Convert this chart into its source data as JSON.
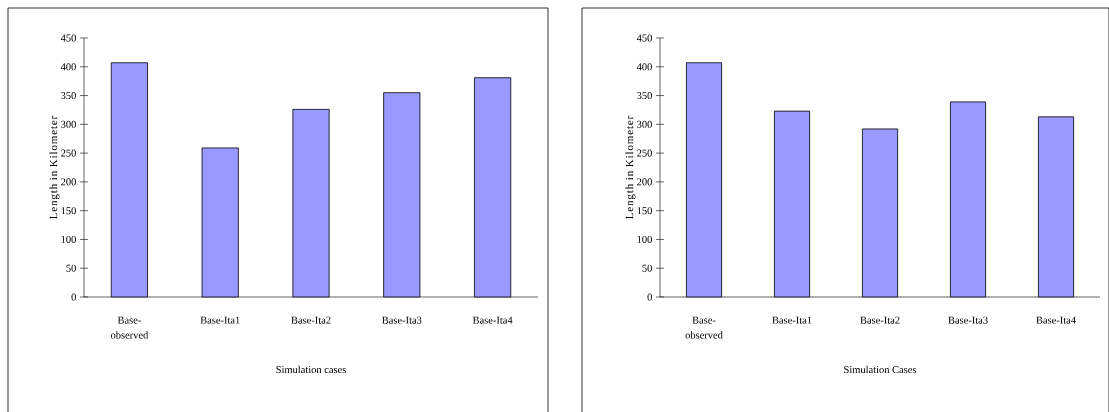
{
  "chart_data": [
    {
      "type": "bar",
      "categories": [
        "Base-observed",
        "Base-Ita1",
        "Base-Ita2",
        "Base-Ita3",
        "Base-Ita4"
      ],
      "values": [
        407,
        259,
        326,
        355,
        381
      ],
      "color": "#9999ff",
      "xlabel": "Simulation cases",
      "ylabel": "Length in Kilometer",
      "ylim": [
        0,
        450
      ],
      "yticks": [
        0,
        50,
        100,
        150,
        200,
        250,
        300,
        350,
        400,
        450
      ],
      "grid": false
    },
    {
      "type": "bar",
      "categories": [
        "Base-observed",
        "Base-Ita1",
        "Base-Ita2",
        "Base-Ita3",
        "Base-Ita4"
      ],
      "values": [
        407,
        323,
        292,
        339,
        313
      ],
      "color": "#9999ff",
      "xlabel": "Simulation Cases",
      "ylabel": "Length in Kilometer",
      "ylim": [
        0,
        450
      ],
      "yticks": [
        0,
        50,
        100,
        150,
        200,
        250,
        300,
        350,
        400,
        450
      ],
      "grid": false
    }
  ]
}
